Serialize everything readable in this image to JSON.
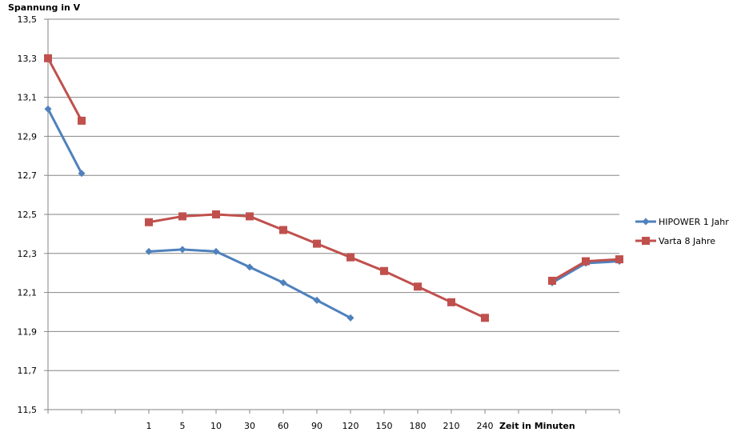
{
  "chart_data": {
    "type": "line",
    "title": "",
    "ylabel": "Spannung in V",
    "xlabel": "Zeit in Minuten",
    "ylim": [
      11.5,
      13.5
    ],
    "ytick_step": 0.2,
    "ytick_labels": [
      "11,5",
      "11,7",
      "11,9",
      "12,1",
      "12,3",
      "12,5",
      "12,7",
      "12,9",
      "13,1",
      "13,3",
      "13,5"
    ],
    "grid": true,
    "legend_position": "right",
    "categories": [
      "",
      "",
      "",
      "1",
      "5",
      "10",
      "30",
      "60",
      "90",
      "120",
      "150",
      "180",
      "210",
      "240",
      "",
      "",
      "",
      ""
    ],
    "series": [
      {
        "name": "HIPOWER 1 Jahr",
        "color": "#4F81BD",
        "marker": "diamond",
        "values": [
          13.04,
          12.71,
          null,
          12.31,
          12.32,
          12.31,
          12.23,
          12.15,
          12.06,
          11.97,
          null,
          null,
          null,
          null,
          null,
          12.15,
          12.25,
          12.26
        ]
      },
      {
        "name": "Varta 8 Jahre",
        "color": "#C0504D",
        "marker": "square",
        "values": [
          13.3,
          12.98,
          null,
          12.46,
          12.49,
          12.5,
          12.49,
          12.42,
          12.35,
          12.28,
          12.21,
          12.13,
          12.05,
          11.97,
          null,
          12.16,
          12.26,
          12.27
        ]
      }
    ]
  }
}
